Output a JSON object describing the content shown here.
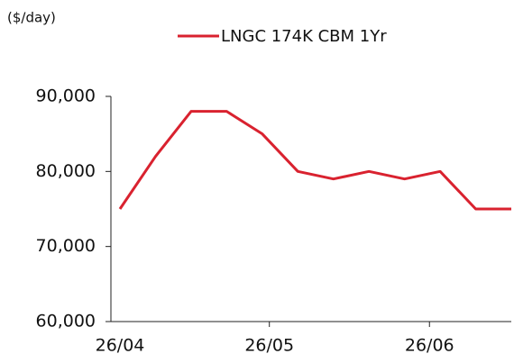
{
  "chart_data": {
    "type": "line",
    "unit_label": "($/day)",
    "x": [
      0,
      1,
      2,
      3,
      4,
      5,
      6,
      7,
      8,
      9,
      10,
      11
    ],
    "xlim": [
      0,
      11
    ],
    "xticks": [
      {
        "value": 0,
        "label": "26/04"
      },
      {
        "value": 4.2,
        "label": "26/05"
      },
      {
        "value": 8.7,
        "label": "26/06"
      }
    ],
    "series": [
      {
        "name": "LNGC 174K CBM 1Yr",
        "color": "#d9222f",
        "values": [
          75000,
          82000,
          88000,
          88000,
          85000,
          80000,
          79000,
          80000,
          79000,
          80000,
          75000,
          75000
        ]
      }
    ],
    "ylim": [
      60000,
      90000
    ],
    "yticks": [
      {
        "value": 60000,
        "label": "60,000"
      },
      {
        "value": 70000,
        "label": "70,000"
      },
      {
        "value": 80000,
        "label": "80,000"
      },
      {
        "value": 90000,
        "label": "90,000"
      }
    ],
    "legend": "top"
  }
}
